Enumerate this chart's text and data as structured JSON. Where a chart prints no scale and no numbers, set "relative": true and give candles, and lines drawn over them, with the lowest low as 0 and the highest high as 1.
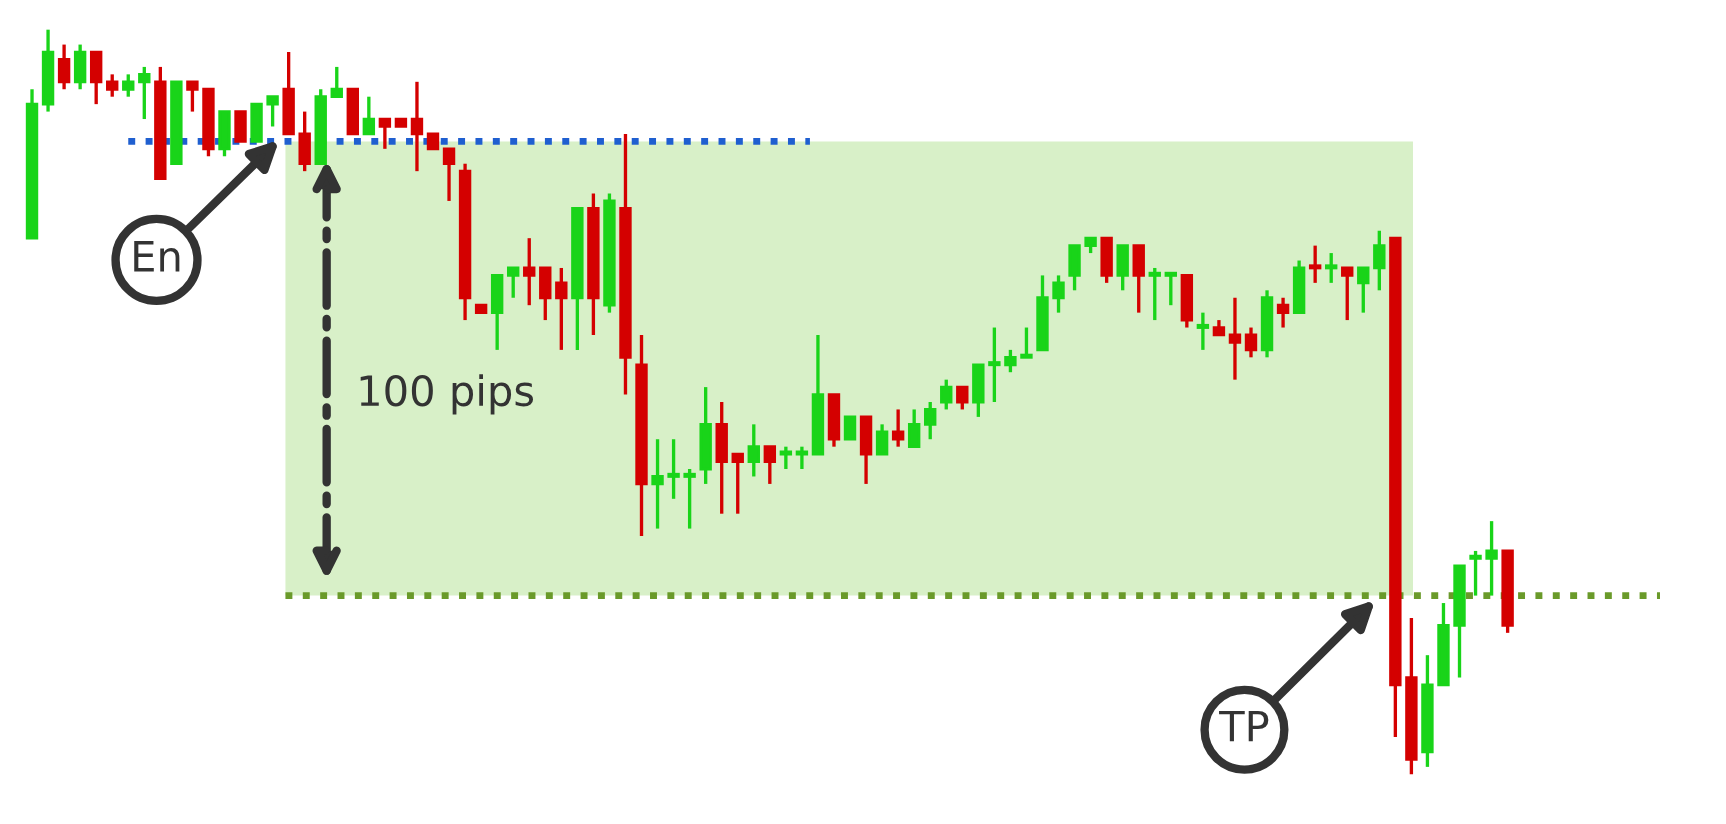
{
  "chart_data": {
    "type": "candlestick",
    "relative": true,
    "categories": [
      null,
      null,
      null,
      null,
      null,
      null,
      null,
      null,
      null,
      null,
      null,
      null,
      null,
      null,
      null,
      null,
      null,
      null,
      null,
      null,
      null,
      null,
      null,
      null,
      null,
      null,
      null,
      null,
      null,
      null,
      null,
      null,
      null,
      null,
      null,
      null,
      null,
      null,
      null,
      null,
      null,
      null,
      null,
      null,
      null,
      null,
      null,
      null,
      null,
      null,
      null,
      null,
      null,
      null,
      null,
      null,
      null,
      null,
      null,
      null,
      null,
      null,
      null,
      null,
      null,
      null,
      null,
      null,
      null,
      null,
      null,
      null,
      null,
      null,
      null,
      null,
      null,
      null,
      null,
      null,
      null,
      null,
      null,
      null,
      null,
      null,
      null,
      null,
      null,
      null,
      null,
      null,
      null
    ],
    "ohlc": [
      [
        0.72,
        0.92,
        0.72,
        0.9
      ],
      [
        0.9,
        1.0,
        0.89,
        0.97
      ],
      [
        0.96,
        0.98,
        0.92,
        0.93
      ],
      [
        0.93,
        0.98,
        0.92,
        0.97
      ],
      [
        0.97,
        0.97,
        0.9,
        0.93
      ],
      [
        0.93,
        0.94,
        0.91,
        0.92
      ],
      [
        0.92,
        0.94,
        0.91,
        0.93
      ],
      [
        0.93,
        0.95,
        0.88,
        0.94
      ],
      [
        0.93,
        0.95,
        0.8,
        0.8
      ],
      [
        0.82,
        0.93,
        0.82,
        0.93
      ],
      [
        0.93,
        0.93,
        0.89,
        0.92
      ],
      [
        0.92,
        0.92,
        0.83,
        0.84
      ],
      [
        0.84,
        0.89,
        0.83,
        0.89
      ],
      [
        0.89,
        0.89,
        0.85,
        0.85
      ],
      [
        0.85,
        0.9,
        0.85,
        0.9
      ],
      [
        0.9,
        0.91,
        0.87,
        0.91
      ],
      [
        0.92,
        0.97,
        0.86,
        0.86
      ],
      [
        0.86,
        0.89,
        0.81,
        0.82
      ],
      [
        0.82,
        0.92,
        0.82,
        0.91
      ],
      [
        0.91,
        0.95,
        0.91,
        0.92
      ],
      [
        0.92,
        0.92,
        0.86,
        0.86
      ],
      [
        0.86,
        0.91,
        0.86,
        0.88
      ],
      [
        0.88,
        0.88,
        0.84,
        0.87
      ],
      [
        0.88,
        0.88,
        0.87,
        0.87
      ],
      [
        0.88,
        0.93,
        0.81,
        0.86
      ],
      [
        0.86,
        0.86,
        0.84,
        0.84
      ],
      [
        0.84,
        0.84,
        0.77,
        0.82
      ],
      [
        0.81,
        0.82,
        0.61,
        0.64
      ],
      [
        0.63,
        0.63,
        0.62,
        0.62
      ],
      [
        0.62,
        0.67,
        0.57,
        0.67
      ],
      [
        0.67,
        0.68,
        0.64,
        0.68
      ],
      [
        0.68,
        0.72,
        0.63,
        0.67
      ],
      [
        0.68,
        0.68,
        0.61,
        0.64
      ],
      [
        0.66,
        0.68,
        0.57,
        0.64
      ],
      [
        0.64,
        0.76,
        0.57,
        0.76
      ],
      [
        0.76,
        0.78,
        0.59,
        0.64
      ],
      [
        0.63,
        0.78,
        0.62,
        0.77
      ],
      [
        0.76,
        0.86,
        0.51,
        0.56
      ],
      [
        0.55,
        0.59,
        0.32,
        0.39
      ],
      [
        0.39,
        0.45,
        0.33,
        0.4
      ],
      [
        0.4,
        0.45,
        0.37,
        0.4
      ],
      [
        0.4,
        0.41,
        0.33,
        0.4
      ],
      [
        0.41,
        0.52,
        0.39,
        0.47
      ],
      [
        0.47,
        0.5,
        0.35,
        0.42
      ],
      [
        0.43,
        0.43,
        0.35,
        0.42
      ],
      [
        0.42,
        0.47,
        0.4,
        0.44
      ],
      [
        0.44,
        0.44,
        0.39,
        0.42
      ],
      [
        0.43,
        0.44,
        0.41,
        0.43
      ],
      [
        0.43,
        0.44,
        0.41,
        0.43
      ],
      [
        0.43,
        0.59,
        0.43,
        0.51
      ],
      [
        0.51,
        0.51,
        0.44,
        0.45
      ],
      [
        0.45,
        0.48,
        0.45,
        0.48
      ],
      [
        0.48,
        0.48,
        0.39,
        0.43
      ],
      [
        0.43,
        0.47,
        0.43,
        0.46
      ],
      [
        0.46,
        0.49,
        0.44,
        0.45
      ],
      [
        0.44,
        0.49,
        0.44,
        0.47
      ],
      [
        0.47,
        0.5,
        0.45,
        0.49
      ],
      [
        0.5,
        0.53,
        0.49,
        0.52
      ],
      [
        0.52,
        0.52,
        0.49,
        0.5
      ],
      [
        0.5,
        0.55,
        0.48,
        0.55
      ],
      [
        0.55,
        0.6,
        0.5,
        0.55
      ],
      [
        0.55,
        0.57,
        0.54,
        0.56
      ],
      [
        0.56,
        0.6,
        0.56,
        0.56
      ],
      [
        0.57,
        0.67,
        0.57,
        0.64
      ],
      [
        0.64,
        0.67,
        0.62,
        0.66
      ],
      [
        0.67,
        0.71,
        0.65,
        0.71
      ],
      [
        0.71,
        0.72,
        0.7,
        0.72
      ],
      [
        0.72,
        0.72,
        0.66,
        0.67
      ],
      [
        0.67,
        0.71,
        0.65,
        0.71
      ],
      [
        0.71,
        0.71,
        0.62,
        0.67
      ],
      [
        0.67,
        0.68,
        0.61,
        0.67
      ],
      [
        0.67,
        0.67,
        0.63,
        0.67
      ],
      [
        0.67,
        0.67,
        0.6,
        0.61
      ],
      [
        0.6,
        0.62,
        0.57,
        0.6
      ],
      [
        0.6,
        0.61,
        0.59,
        0.59
      ],
      [
        0.59,
        0.64,
        0.53,
        0.58
      ],
      [
        0.59,
        0.6,
        0.56,
        0.57
      ],
      [
        0.57,
        0.65,
        0.56,
        0.64
      ],
      [
        0.63,
        0.64,
        0.6,
        0.62
      ],
      [
        0.62,
        0.69,
        0.62,
        0.68
      ],
      [
        0.68,
        0.71,
        0.66,
        0.68
      ],
      [
        0.68,
        0.7,
        0.66,
        0.68
      ],
      [
        0.68,
        0.68,
        0.61,
        0.67
      ],
      [
        0.66,
        0.68,
        0.62,
        0.68
      ],
      [
        0.68,
        0.73,
        0.65,
        0.71
      ],
      [
        0.72,
        0.72,
        0.05,
        0.12
      ],
      [
        0.13,
        0.21,
        0.0,
        0.02
      ],
      [
        0.03,
        0.16,
        0.01,
        0.12
      ],
      [
        0.12,
        0.23,
        0.12,
        0.2
      ],
      [
        0.2,
        0.28,
        0.13,
        0.28
      ],
      [
        0.29,
        0.3,
        0.24,
        0.29
      ],
      [
        0.29,
        0.34,
        0.24,
        0.3
      ],
      [
        0.3,
        0.3,
        0.19,
        0.2
      ]
    ],
    "colors": [
      "#19d419",
      "#19d419",
      "#d40000",
      "#19d419",
      "#d40000",
      "#d40000",
      "#19d419",
      "#19d419",
      "#d40000",
      "#19d419",
      "#d40000",
      "#d40000",
      "#19d419",
      "#d40000",
      "#19d419",
      "#19d419",
      "#d40000",
      "#d40000",
      "#19d419",
      "#19d419",
      "#d40000",
      "#19d419",
      "#d40000",
      "#d40000",
      "#d40000",
      "#d40000",
      "#d40000",
      "#d40000",
      "#d40000",
      "#19d419",
      "#19d419",
      "#d40000",
      "#d40000",
      "#d40000",
      "#19d419",
      "#d40000",
      "#19d419",
      "#d40000",
      "#d40000",
      "#19d419",
      "#19d419",
      "#19d419",
      "#19d419",
      "#d40000",
      "#d40000",
      "#19d419",
      "#d40000",
      "#19d419",
      "#19d419",
      "#19d419",
      "#d40000",
      "#19d419",
      "#d40000",
      "#19d419",
      "#d40000",
      "#19d419",
      "#19d419",
      "#19d419",
      "#d40000",
      "#19d419",
      "#19d419",
      "#19d419",
      "#19d419",
      "#19d419",
      "#19d419",
      "#19d419",
      "#19d419",
      "#d40000",
      "#19d419",
      "#d40000",
      "#19d419",
      "#19d419",
      "#d40000",
      "#19d419",
      "#d40000",
      "#d40000",
      "#d40000",
      "#19d419",
      "#d40000",
      "#19d419",
      "#d40000",
      "#19d419",
      "#d40000",
      "#19d419",
      "#19d419",
      "#d40000",
      "#d40000",
      "#19d419",
      "#19d419",
      "#19d419",
      "#19d419",
      "#19d419",
      "#d40000"
    ],
    "ref_lines": [
      {
        "axis": "y",
        "value": 0.85,
        "color": "#1f5fd0",
        "line_style": "dotted"
      },
      {
        "axis": "y",
        "value": 0.24,
        "color": "#6a9a2a",
        "line_style": "dotted"
      }
    ],
    "bands": [
      {
        "axis": "y",
        "from": 0.24,
        "to": 0.85,
        "color": "#d8f0c8"
      }
    ],
    "annotations": [
      "En",
      "100 pips",
      "TP"
    ]
  }
}
